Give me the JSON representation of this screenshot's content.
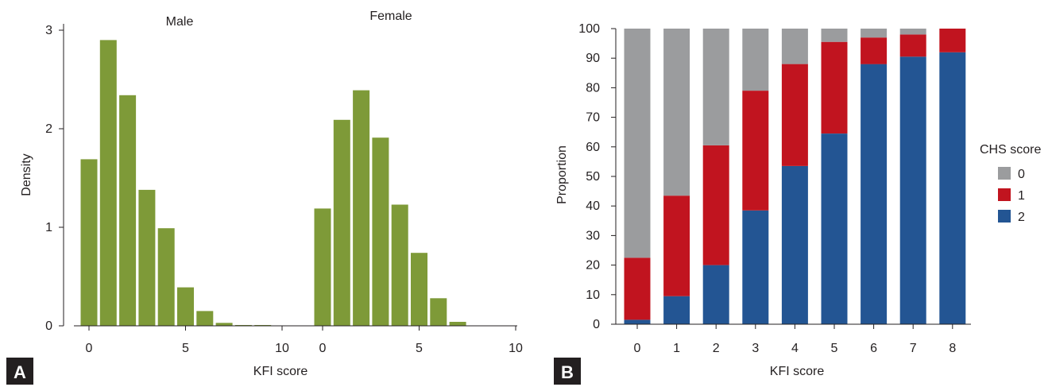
{
  "panel_a_label": "A",
  "panel_b_label": "B",
  "chart_data": [
    {
      "type": "bar",
      "subtype": "histogram",
      "panel": "A",
      "xlabel": "KFI score",
      "ylabel": "Density",
      "ylim": [
        0,
        3
      ],
      "yticks": [
        0,
        1,
        2,
        3
      ],
      "xticks": [
        0,
        5,
        10
      ],
      "xlim": [
        -0.5,
        10
      ],
      "bar_color": "#7e9a38",
      "facets": [
        {
          "name": "Male",
          "bins": [
            0,
            1,
            2,
            3,
            4,
            5,
            6,
            7,
            8,
            9
          ],
          "values": [
            1.69,
            2.9,
            2.34,
            1.38,
            0.99,
            0.39,
            0.15,
            0.03,
            0.005,
            0.005
          ]
        },
        {
          "name": "Female",
          "bins": [
            0,
            1,
            2,
            3,
            4,
            5,
            6,
            7
          ],
          "values": [
            1.19,
            2.09,
            2.39,
            1.91,
            1.23,
            0.74,
            0.28,
            0.04
          ]
        }
      ]
    },
    {
      "type": "bar",
      "subtype": "stacked",
      "panel": "B",
      "xlabel": "KFI score",
      "ylabel": "Proportion",
      "ylim": [
        0,
        100
      ],
      "yticks": [
        0,
        10,
        20,
        30,
        40,
        50,
        60,
        70,
        80,
        90,
        100
      ],
      "categories": [
        "0",
        "1",
        "2",
        "3",
        "4",
        "5",
        "6",
        "7",
        "8"
      ],
      "legend": {
        "title": "CHS score",
        "placement": "right"
      },
      "series": [
        {
          "name": "2",
          "color": "#235593",
          "values": [
            1.5,
            9.5,
            20,
            38.5,
            53.5,
            64.5,
            88,
            90.5,
            92
          ]
        },
        {
          "name": "1",
          "color": "#c1141f",
          "values": [
            21,
            34,
            40.5,
            40.5,
            34.5,
            31,
            9,
            7.5,
            8
          ]
        },
        {
          "name": "0",
          "color": "#9b9c9e",
          "values": [
            77.5,
            56.5,
            39.5,
            21,
            12,
            4.5,
            3,
            2,
            0
          ]
        }
      ]
    }
  ]
}
